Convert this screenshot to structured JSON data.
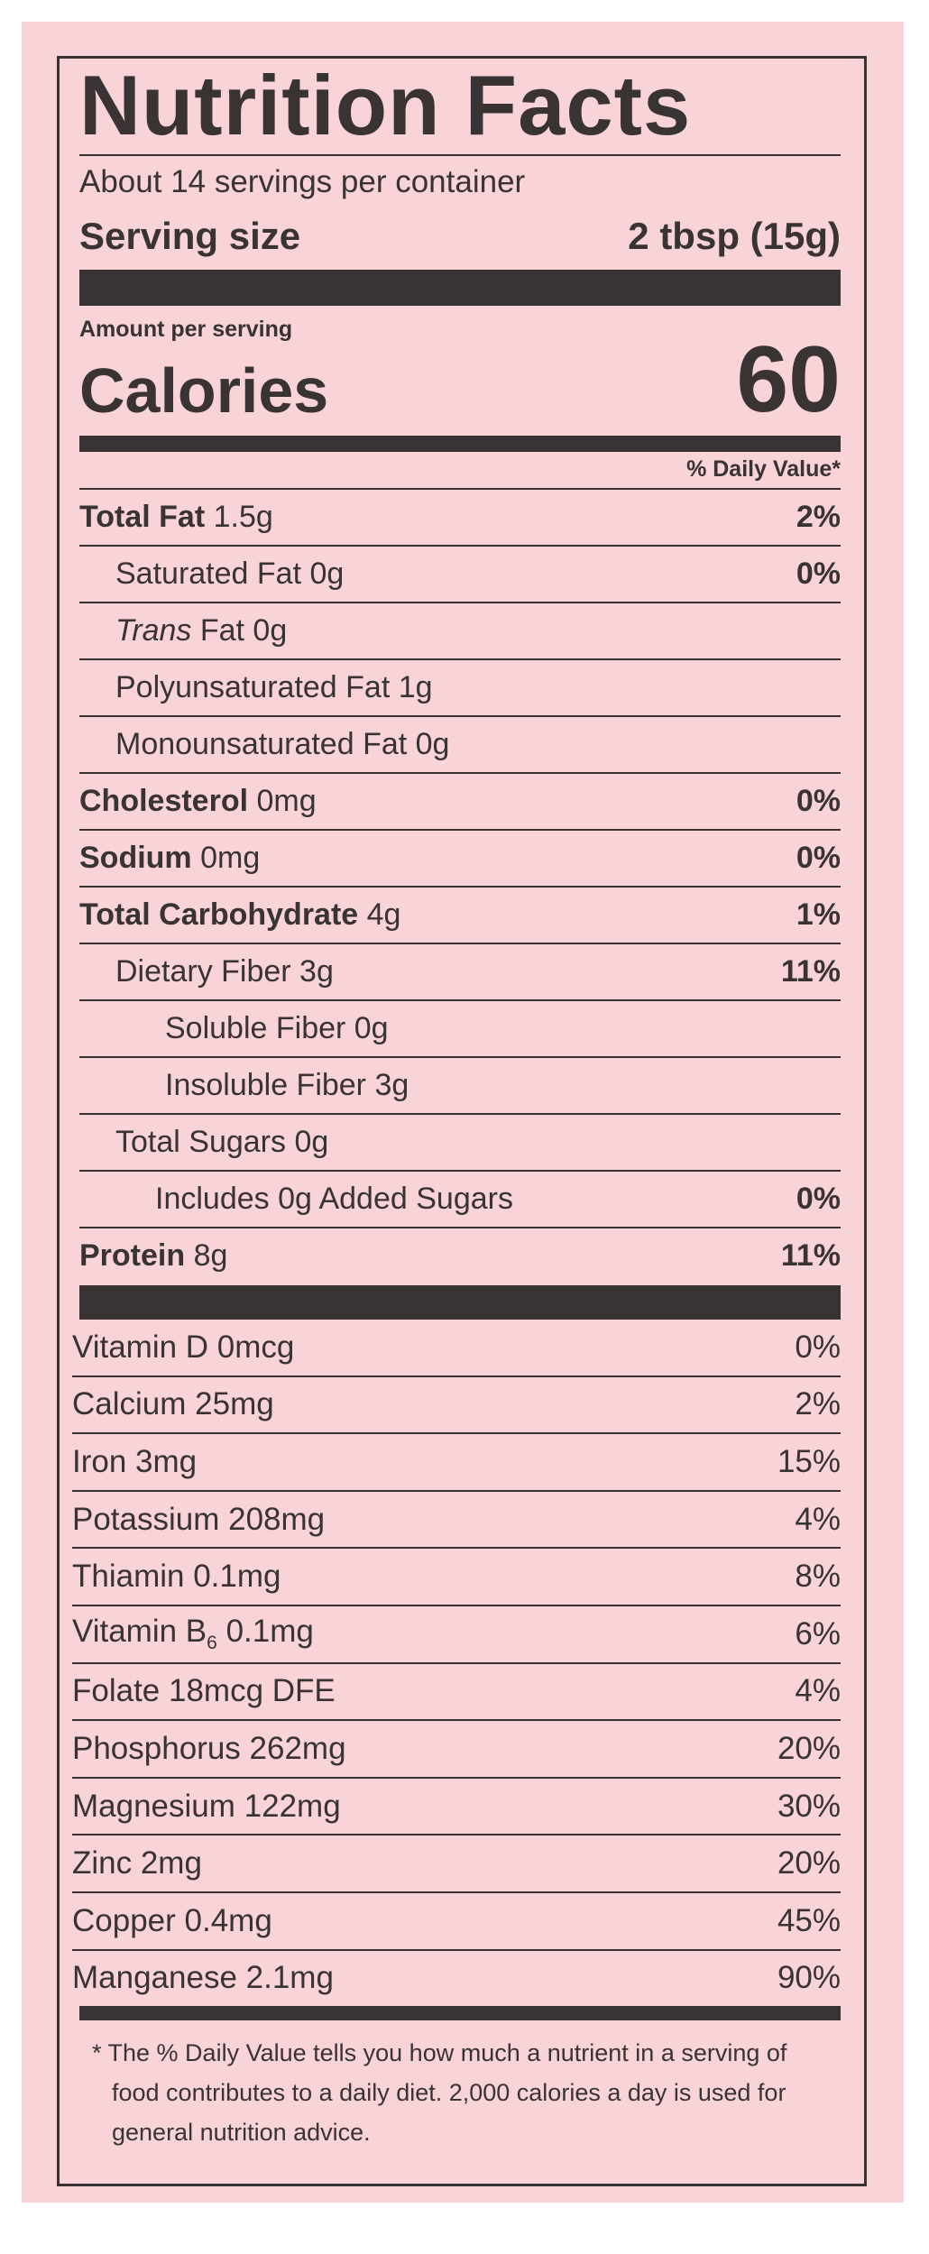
{
  "label": {
    "title": "Nutrition Facts",
    "servings_per_container": "About 14 servings per container",
    "serving_size_label": "Serving size",
    "serving_size_value": "2 tbsp (15g)",
    "amount_per_serving": "Amount per serving",
    "calories_label": "Calories",
    "calories_value": "60",
    "daily_value_header": "% Daily Value*",
    "nutrients": [
      {
        "name": "Total Fat",
        "amount": "1.5g",
        "dv": "2%"
      },
      {
        "name": "Saturated Fat 0g",
        "dv": "0%"
      },
      {
        "name_italic": "Trans",
        "name": "Fat 0g",
        "dv": ""
      },
      {
        "name": "Polyunsaturated Fat 1g",
        "dv": ""
      },
      {
        "name": "Monounsaturated Fat 0g",
        "dv": ""
      },
      {
        "name": "Cholesterol",
        "amount": "0mg",
        "dv": "0%"
      },
      {
        "name": "Sodium",
        "amount": "0mg",
        "dv": "0%"
      },
      {
        "name": "Total Carbohydrate",
        "amount": "4g",
        "dv": "1%"
      },
      {
        "name": "Dietary Fiber 3g",
        "dv": "11%"
      },
      {
        "name": "Soluble Fiber 0g",
        "dv": ""
      },
      {
        "name": "Insoluble Fiber 3g",
        "dv": ""
      },
      {
        "name": "Total Sugars 0g",
        "dv": ""
      },
      {
        "name": "Includes 0g Added Sugars",
        "dv": "0%"
      },
      {
        "name": "Protein",
        "amount": "8g",
        "dv": "11%"
      }
    ],
    "vitamins": [
      {
        "name": "Vitamin D 0mcg",
        "dv": "0%"
      },
      {
        "name": "Calcium 25mg",
        "dv": "2%"
      },
      {
        "name": "Iron 3mg",
        "dv": "15%"
      },
      {
        "name": "Potassium 208mg",
        "dv": "4%"
      },
      {
        "name": "Thiamin 0.1mg",
        "dv": "8%"
      },
      {
        "name": "Vitamin B",
        "sub": "6",
        "amount": "0.1mg",
        "dv": "6%"
      },
      {
        "name": "Folate 18mcg DFE",
        "dv": "4%"
      },
      {
        "name": "Phosphorus 262mg",
        "dv": "20%"
      },
      {
        "name": "Magnesium 122mg",
        "dv": "30%"
      },
      {
        "name": "Zinc 2mg",
        "dv": "20%"
      },
      {
        "name": "Copper 0.4mg",
        "dv": "45%"
      },
      {
        "name": "Manganese 2.1mg",
        "dv": "90%"
      }
    ],
    "footnote": "* The % Daily Value tells you how much a nutrient in a serving of food contributes to a daily diet. 2,000 calories a day is used for general nutrition advice."
  },
  "colors": {
    "background": "#f8d3d8",
    "ink": "#3a3333"
  }
}
